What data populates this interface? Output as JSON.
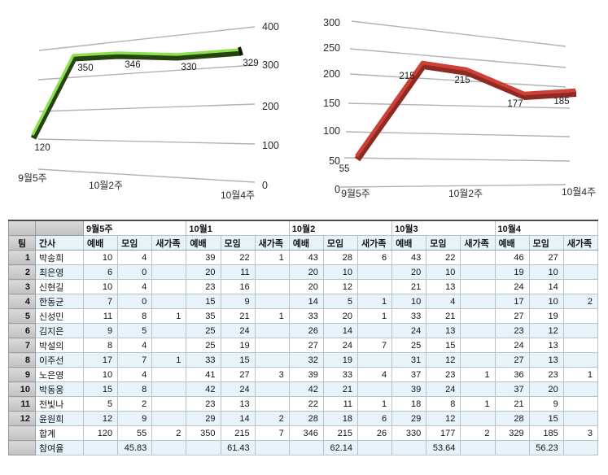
{
  "colors": {
    "stripe": "#e7f3f9",
    "header_gray": "#c9c9c9",
    "cell_border": "#b6c3cd",
    "grid_line": "#b2b2b2",
    "chart_text": "#2a2a2a",
    "green_line": "#8ce04e",
    "green_shadow": "#24430f",
    "green_cap": "#101408",
    "red_line": "#cc4038",
    "red_shadow": "#8f2a22"
  },
  "chart_data": [
    {
      "type": "line",
      "name": "worship-total-trend",
      "categories": [
        "9월5주",
        "10월1",
        "10월2",
        "10월3",
        "10월4"
      ],
      "values": [
        120,
        350,
        346,
        330,
        329
      ],
      "point_labels": [
        "120",
        "350",
        "346",
        "330",
        "329"
      ],
      "y_ticks": [
        "400",
        "300",
        "200",
        "100",
        "0"
      ],
      "x_tick_labels": [
        "9월5주",
        "10월2주",
        "10월4주"
      ],
      "ylim": [
        0,
        400
      ],
      "legend": "none",
      "grid": "on",
      "axis_side": "right",
      "line_color": "#8ce04e",
      "shadow_color": "#24430f"
    },
    {
      "type": "line",
      "name": "meeting-total-trend",
      "categories": [
        "9월5주",
        "10월1",
        "10월2",
        "10월3",
        "10월4"
      ],
      "values": [
        55,
        215,
        215,
        177,
        185
      ],
      "point_labels": [
        "55",
        "215",
        "215",
        "177",
        "185"
      ],
      "y_ticks": [
        "300",
        "250",
        "200",
        "150",
        "100",
        "50",
        "0"
      ],
      "x_tick_labels": [
        "9월5주",
        "10월2주",
        "10월4주"
      ],
      "ylim": [
        0,
        300
      ],
      "legend": "none",
      "grid": "on",
      "axis_side": "left",
      "line_color": "#cc4038",
      "shadow_color": "#8f2a22"
    }
  ],
  "table": {
    "corner_label": "팀",
    "staff_label": "간사",
    "week_groups": [
      "9월5주",
      "10월1",
      "10월2",
      "10월3",
      "10월4"
    ],
    "sub_headers": [
      "예배",
      "모임",
      "새가족"
    ],
    "rows": [
      {
        "num": "1",
        "name": "박송희",
        "cells": [
          "10",
          "4",
          "",
          "39",
          "22",
          "1",
          "43",
          "28",
          "6",
          "43",
          "22",
          "",
          "46",
          "27",
          ""
        ]
      },
      {
        "num": "2",
        "name": "최은영",
        "cells": [
          "6",
          "0",
          "",
          "20",
          "11",
          "",
          "20",
          "10",
          "",
          "20",
          "10",
          "",
          "19",
          "10",
          ""
        ]
      },
      {
        "num": "3",
        "name": "신현길",
        "cells": [
          "10",
          "4",
          "",
          "23",
          "16",
          "",
          "20",
          "12",
          "",
          "21",
          "13",
          "",
          "24",
          "14",
          ""
        ]
      },
      {
        "num": "4",
        "name": "한동균",
        "cells": [
          "7",
          "0",
          "",
          "15",
          "9",
          "",
          "14",
          "5",
          "1",
          "10",
          "4",
          "",
          "17",
          "10",
          "2"
        ]
      },
      {
        "num": "5",
        "name": "신성민",
        "cells": [
          "11",
          "8",
          "1",
          "35",
          "21",
          "1",
          "33",
          "20",
          "1",
          "33",
          "21",
          "",
          "27",
          "19",
          ""
        ]
      },
      {
        "num": "6",
        "name": "김지은",
        "cells": [
          "9",
          "5",
          "",
          "25",
          "24",
          "",
          "26",
          "14",
          "",
          "24",
          "13",
          "",
          "23",
          "12",
          ""
        ]
      },
      {
        "num": "7",
        "name": "박설의",
        "cells": [
          "8",
          "4",
          "",
          "25",
          "19",
          "",
          "27",
          "24",
          "7",
          "25",
          "15",
          "",
          "24",
          "13",
          ""
        ]
      },
      {
        "num": "8",
        "name": "이주선",
        "cells": [
          "17",
          "7",
          "1",
          "33",
          "15",
          "",
          "32",
          "19",
          "",
          "31",
          "12",
          "",
          "27",
          "13",
          ""
        ]
      },
      {
        "num": "9",
        "name": "노은영",
        "cells": [
          "10",
          "4",
          "",
          "41",
          "27",
          "3",
          "39",
          "33",
          "4",
          "37",
          "23",
          "1",
          "36",
          "23",
          "1"
        ]
      },
      {
        "num": "10",
        "name": "박동웅",
        "cells": [
          "15",
          "8",
          "",
          "42",
          "24",
          "",
          "42",
          "21",
          "",
          "39",
          "24",
          "",
          "37",
          "20",
          ""
        ]
      },
      {
        "num": "11",
        "name": "전빛나",
        "cells": [
          "5",
          "2",
          "",
          "23",
          "13",
          "",
          "22",
          "11",
          "1",
          "18",
          "8",
          "1",
          "21",
          "9",
          ""
        ]
      },
      {
        "num": "12",
        "name": "윤원희",
        "cells": [
          "12",
          "9",
          "",
          "29",
          "14",
          "2",
          "28",
          "18",
          "6",
          "29",
          "12",
          "",
          "28",
          "15",
          ""
        ]
      }
    ],
    "total_row": {
      "label": "합계",
      "cells": [
        "120",
        "55",
        "2",
        "350",
        "215",
        "7",
        "346",
        "215",
        "26",
        "330",
        "177",
        "2",
        "329",
        "185",
        "3"
      ]
    },
    "rate_row": {
      "label": "참여율",
      "cells": [
        "",
        "45.83",
        "",
        "",
        "61.43",
        "",
        "",
        "62.14",
        "",
        "",
        "53.64",
        "",
        "",
        "56.23",
        ""
      ]
    }
  }
}
